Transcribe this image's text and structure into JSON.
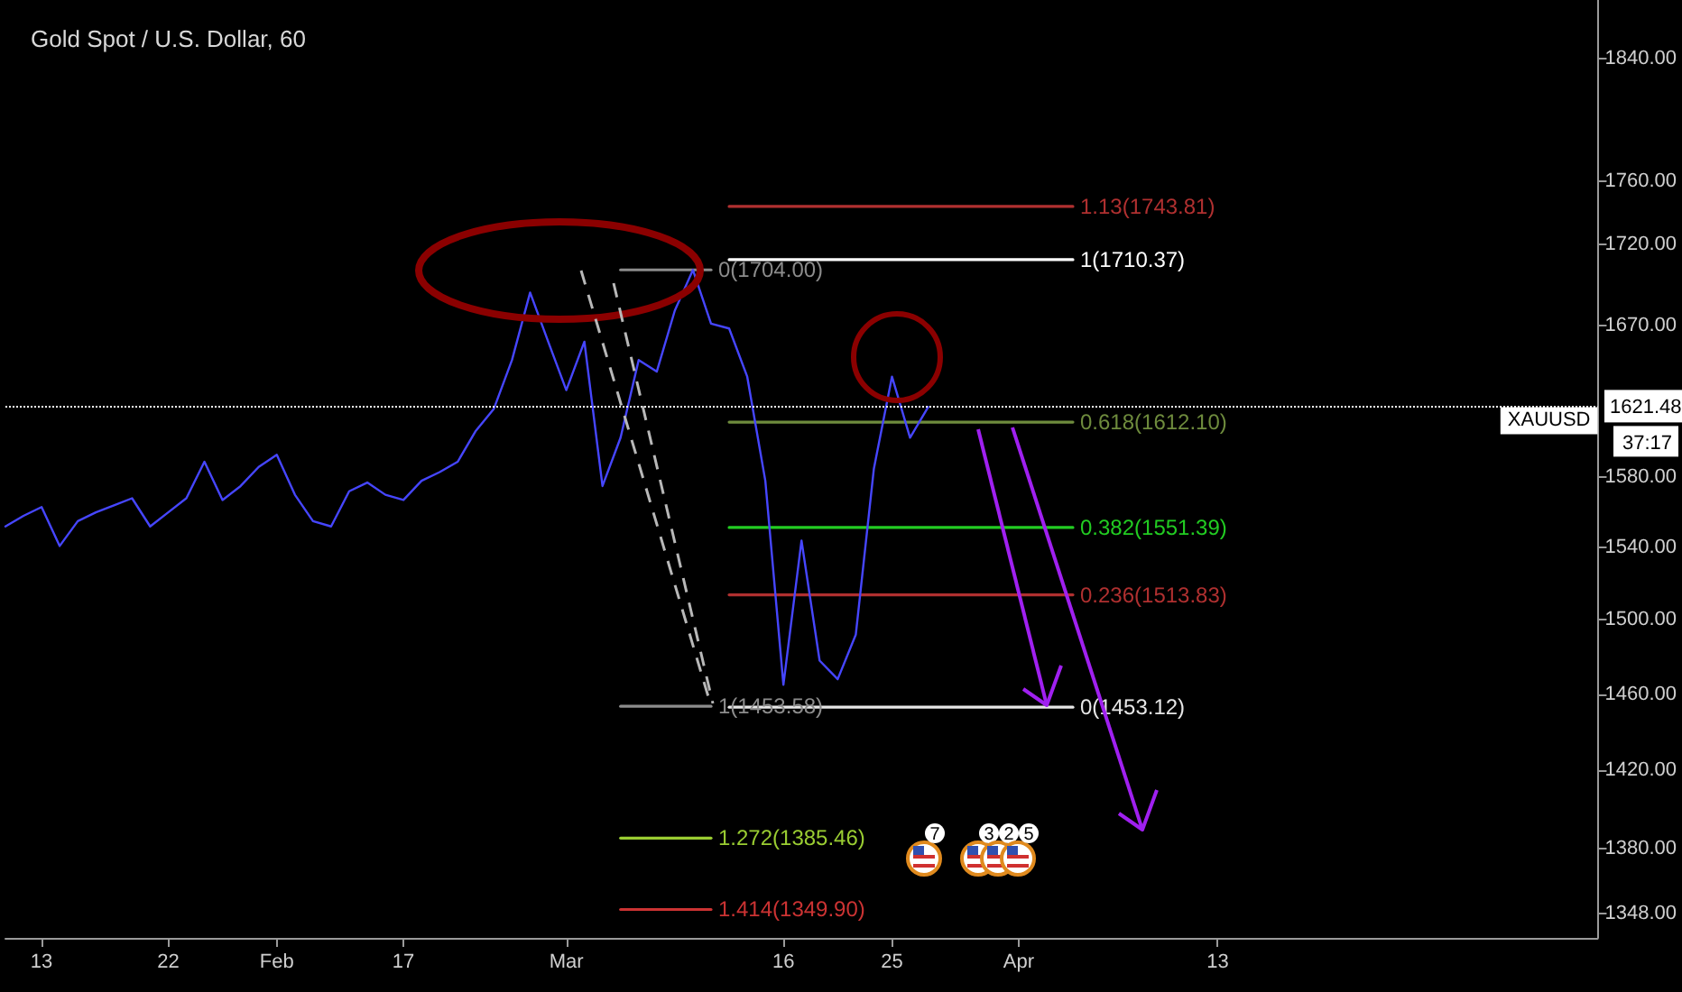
{
  "chart_data": {
    "type": "line",
    "title": "Gold Spot / U.S. Dollar, 60",
    "log": "y",
    "categories": [
      null,
      null,
      "13",
      null,
      null,
      null,
      null,
      null,
      null,
      "22",
      null,
      null,
      null,
      null,
      null,
      "Feb",
      null,
      null,
      null,
      null,
      null,
      null,
      "17",
      null,
      null,
      null,
      null,
      null,
      null,
      null,
      null,
      "Mar",
      null,
      null,
      null,
      null,
      null,
      null,
      null,
      null,
      null,
      null,
      null,
      "16",
      null,
      null,
      null,
      null,
      null,
      "25",
      null,
      null,
      null,
      null,
      null,
      null,
      "Apr",
      null,
      null,
      null,
      null,
      null,
      null,
      null,
      null,
      null,
      null,
      "13",
      null,
      null,
      null,
      null,
      null,
      null,
      null,
      null,
      null,
      null,
      null,
      null,
      null,
      null,
      null,
      null,
      null,
      null,
      null,
      null,
      null
    ],
    "ylim": [
      1336,
      1880
    ],
    "yticks": [
      {
        "value": 1348,
        "label": "1348.00"
      },
      {
        "value": 1380,
        "label": "1380.00"
      },
      {
        "value": 1420,
        "label": "1420.00"
      },
      {
        "value": 1460,
        "label": "1460.00"
      },
      {
        "value": 1500,
        "label": "1500.00"
      },
      {
        "value": 1540,
        "label": "1540.00"
      },
      {
        "value": 1580,
        "label": "1580.00"
      },
      {
        "value": 1670,
        "label": "1670.00"
      },
      {
        "value": 1720,
        "label": "1720.00"
      },
      {
        "value": 1760,
        "label": "1760.00"
      },
      {
        "value": 1840,
        "label": "1840.00"
      }
    ],
    "series": [
      {
        "color": "#4646ff",
        "values": [
          1552,
          1558,
          1563,
          1541,
          1555,
          1560,
          1564,
          1568,
          1552,
          1560,
          1568,
          1589,
          1567,
          1575,
          1586,
          1593,
          1570,
          1555,
          1552,
          1572,
          1577,
          1570,
          1567,
          1578,
          1583,
          1589,
          1607,
          1620,
          1649,
          1690,
          1660,
          1631,
          1660,
          1575,
          1603,
          1649,
          1642,
          1679,
          1704,
          1671,
          1668,
          1639,
          1578,
          1465,
          1544,
          1478,
          1468,
          1492,
          1585,
          1639,
          1603,
          1621,
          null,
          null,
          null,
          null,
          null,
          null,
          null,
          null,
          null,
          null,
          null,
          null,
          null,
          null,
          null,
          null,
          null,
          null,
          null,
          null,
          null,
          null,
          null,
          null,
          null,
          null,
          null,
          null,
          null,
          null,
          null,
          null,
          null,
          null,
          null,
          null,
          null
        ]
      },
      {
        "name": "1.13(1743.81)",
        "color": "#b03030",
        "values": [
          null,
          null,
          null,
          null,
          null,
          null,
          null,
          null,
          null,
          null,
          null,
          null,
          null,
          null,
          null,
          null,
          null,
          null,
          null,
          null,
          null,
          null,
          null,
          null,
          null,
          null,
          null,
          null,
          null,
          null,
          null,
          null,
          null,
          null,
          null,
          null,
          null,
          null,
          null,
          null,
          1743.81,
          1743.81,
          1743.81,
          1743.81,
          1743.81,
          1743.81,
          1743.81,
          1743.81,
          1743.81,
          1743.81,
          1743.81,
          1743.81,
          1743.81,
          1743.81,
          1743.81,
          1743.81,
          1743.81,
          1743.81,
          1743.81,
          1743.81,
          null,
          null,
          null,
          null,
          null,
          null,
          null,
          null,
          null,
          null,
          null,
          null,
          null,
          null,
          null,
          null,
          null,
          null,
          null,
          null,
          null,
          null,
          null,
          null,
          null,
          null,
          null,
          null,
          null
        ]
      },
      {
        "name": "1(1710.37)",
        "color": "#ffffff",
        "values": [
          null,
          null,
          null,
          null,
          null,
          null,
          null,
          null,
          null,
          null,
          null,
          null,
          null,
          null,
          null,
          null,
          null,
          null,
          null,
          null,
          null,
          null,
          null,
          null,
          null,
          null,
          null,
          null,
          null,
          null,
          null,
          null,
          null,
          null,
          null,
          null,
          null,
          null,
          null,
          null,
          1710.37,
          1710.37,
          1710.37,
          1710.37,
          1710.37,
          1710.37,
          1710.37,
          1710.37,
          1710.37,
          1710.37,
          1710.37,
          1710.37,
          1710.37,
          1710.37,
          1710.37,
          1710.37,
          1710.37,
          1710.37,
          1710.37,
          1710.37,
          null,
          null,
          null,
          null,
          null,
          null,
          null,
          null,
          null,
          null,
          null,
          null,
          null,
          null,
          null,
          null,
          null,
          null,
          null,
          null,
          null,
          null,
          null,
          null,
          null,
          null,
          null,
          null,
          null
        ]
      },
      {
        "name": "0(1704.00)",
        "color": "#8c8c8c",
        "values": [
          null,
          null,
          null,
          null,
          null,
          null,
          null,
          null,
          null,
          null,
          null,
          null,
          null,
          null,
          null,
          null,
          null,
          null,
          null,
          null,
          null,
          null,
          null,
          null,
          null,
          null,
          null,
          null,
          null,
          null,
          null,
          null,
          null,
          null,
          1704,
          1704,
          1704,
          1704,
          1704,
          1704,
          null,
          null,
          null,
          null,
          null,
          null,
          null,
          null,
          null,
          null,
          null,
          null,
          null,
          null,
          null,
          null,
          null,
          null,
          null,
          null,
          null,
          null,
          null,
          null,
          null,
          null,
          null,
          null,
          null,
          null,
          null,
          null,
          null,
          null,
          null,
          null,
          null,
          null,
          null,
          null,
          null,
          null,
          null,
          null,
          null,
          null,
          null,
          null,
          null
        ]
      },
      {
        "name": "0.618(1612.10)",
        "color": "#6e8b3d",
        "values": [
          null,
          null,
          null,
          null,
          null,
          null,
          null,
          null,
          null,
          null,
          null,
          null,
          null,
          null,
          null,
          null,
          null,
          null,
          null,
          null,
          null,
          null,
          null,
          null,
          null,
          null,
          null,
          null,
          null,
          null,
          null,
          null,
          null,
          null,
          null,
          null,
          null,
          null,
          null,
          null,
          1612.1,
          1612.1,
          1612.1,
          1612.1,
          1612.1,
          1612.1,
          1612.1,
          1612.1,
          1612.1,
          1612.1,
          1612.1,
          1612.1,
          1612.1,
          1612.1,
          1612.1,
          1612.1,
          1612.1,
          1612.1,
          1612.1,
          1612.1,
          null,
          null,
          null,
          null,
          null,
          null,
          null,
          null,
          null,
          null,
          null,
          null,
          null,
          null,
          null,
          null,
          null,
          null,
          null,
          null,
          null,
          null,
          null,
          null,
          null,
          null,
          null,
          null,
          null
        ]
      },
      {
        "name": "0.382(1551.39)",
        "color": "#22cc22",
        "values": [
          null,
          null,
          null,
          null,
          null,
          null,
          null,
          null,
          null,
          null,
          null,
          null,
          null,
          null,
          null,
          null,
          null,
          null,
          null,
          null,
          null,
          null,
          null,
          null,
          null,
          null,
          null,
          null,
          null,
          null,
          null,
          null,
          null,
          null,
          null,
          null,
          null,
          null,
          null,
          null,
          1551.39,
          1551.39,
          1551.39,
          1551.39,
          1551.39,
          1551.39,
          1551.39,
          1551.39,
          1551.39,
          1551.39,
          1551.39,
          1551.39,
          1551.39,
          1551.39,
          1551.39,
          1551.39,
          1551.39,
          1551.39,
          1551.39,
          1551.39,
          null,
          null,
          null,
          null,
          null,
          null,
          null,
          null,
          null,
          null,
          null,
          null,
          null,
          null,
          null,
          null,
          null,
          null,
          null,
          null,
          null,
          null,
          null,
          null,
          null,
          null,
          null,
          null,
          null
        ]
      },
      {
        "name": "0.236(1513.83)",
        "color": "#b03030",
        "values": [
          null,
          null,
          null,
          null,
          null,
          null,
          null,
          null,
          null,
          null,
          null,
          null,
          null,
          null,
          null,
          null,
          null,
          null,
          null,
          null,
          null,
          null,
          null,
          null,
          null,
          null,
          null,
          null,
          null,
          null,
          null,
          null,
          null,
          null,
          null,
          null,
          null,
          null,
          null,
          null,
          1513.83,
          1513.83,
          1513.83,
          1513.83,
          1513.83,
          1513.83,
          1513.83,
          1513.83,
          1513.83,
          1513.83,
          1513.83,
          1513.83,
          1513.83,
          1513.83,
          1513.83,
          1513.83,
          1513.83,
          1513.83,
          1513.83,
          1513.83,
          null,
          null,
          null,
          null,
          null,
          null,
          null,
          null,
          null,
          null,
          null,
          null,
          null,
          null,
          null,
          null,
          null,
          null,
          null,
          null,
          null,
          null,
          null,
          null,
          null,
          null,
          null,
          null,
          null
        ]
      },
      {
        "name": "0(1453.12)",
        "color": "#e6e6e6",
        "values": [
          null,
          null,
          null,
          null,
          null,
          null,
          null,
          null,
          null,
          null,
          null,
          null,
          null,
          null,
          null,
          null,
          null,
          null,
          null,
          null,
          null,
          null,
          null,
          null,
          null,
          null,
          null,
          null,
          null,
          null,
          null,
          null,
          null,
          null,
          null,
          null,
          null,
          null,
          null,
          null,
          1453.12,
          1453.12,
          1453.12,
          1453.12,
          1453.12,
          1453.12,
          1453.12,
          1453.12,
          1453.12,
          1453.12,
          1453.12,
          1453.12,
          1453.12,
          1453.12,
          1453.12,
          1453.12,
          1453.12,
          1453.12,
          1453.12,
          1453.12,
          null,
          null,
          null,
          null,
          null,
          null,
          null,
          null,
          null,
          null,
          null,
          null,
          null,
          null,
          null,
          null,
          null,
          null,
          null,
          null,
          null,
          null,
          null,
          null,
          null,
          null,
          null,
          null,
          null
        ]
      },
      {
        "name": "1(1453.58)",
        "color": "#8c8c8c",
        "values": [
          null,
          null,
          null,
          null,
          null,
          null,
          null,
          null,
          null,
          null,
          null,
          null,
          null,
          null,
          null,
          null,
          null,
          null,
          null,
          null,
          null,
          null,
          null,
          null,
          null,
          null,
          null,
          null,
          null,
          null,
          null,
          null,
          null,
          null,
          1453.58,
          1453.58,
          1453.58,
          1453.58,
          1453.58,
          1453.58,
          null,
          null,
          null,
          null,
          null,
          null,
          null,
          null,
          null,
          null,
          null,
          null,
          null,
          null,
          null,
          null,
          null,
          null,
          null,
          null,
          null,
          null,
          null,
          null,
          null,
          null,
          null,
          null,
          null,
          null,
          null,
          null,
          null,
          null,
          null,
          null,
          null,
          null,
          null,
          null,
          null,
          null,
          null,
          null,
          null,
          null,
          null,
          null,
          null
        ]
      },
      {
        "name": "1.272(1385.46)",
        "color": "#9acd32",
        "values": [
          null,
          null,
          null,
          null,
          null,
          null,
          null,
          null,
          null,
          null,
          null,
          null,
          null,
          null,
          null,
          null,
          null,
          null,
          null,
          null,
          null,
          null,
          null,
          null,
          null,
          null,
          null,
          null,
          null,
          null,
          null,
          null,
          null,
          null,
          1385.46,
          1385.46,
          1385.46,
          1385.46,
          1385.46,
          1385.46,
          null,
          null,
          null,
          null,
          null,
          null,
          null,
          null,
          null,
          null,
          null,
          null,
          null,
          null,
          null,
          null,
          null,
          null,
          null,
          null,
          null,
          null,
          null,
          null,
          null,
          null,
          null,
          null,
          null,
          null,
          null,
          null,
          null,
          null,
          null,
          null,
          null,
          null,
          null,
          null,
          null,
          null,
          null,
          null,
          null,
          null,
          null,
          null,
          null
        ]
      },
      {
        "name": "1.414(1349.90)",
        "color": "#cc3333",
        "values": [
          null,
          null,
          null,
          null,
          null,
          null,
          null,
          null,
          null,
          null,
          null,
          null,
          null,
          null,
          null,
          null,
          null,
          null,
          null,
          null,
          null,
          null,
          null,
          null,
          null,
          null,
          null,
          null,
          null,
          null,
          null,
          null,
          null,
          null,
          1349.9,
          1349.9,
          1349.9,
          1349.9,
          1349.9,
          1349.9,
          null,
          null,
          null,
          null,
          null,
          null,
          null,
          null,
          null,
          null,
          null,
          null,
          null,
          null,
          null,
          null,
          null,
          null,
          null,
          null,
          null,
          null,
          null,
          null,
          null,
          null,
          null,
          null,
          null,
          null,
          null,
          null,
          null,
          null,
          null,
          null,
          null,
          null,
          null,
          null,
          null,
          null,
          null,
          null,
          null,
          null,
          null,
          null,
          null
        ]
      }
    ],
    "ref_lines": [
      {
        "axis": "y",
        "value": 1621.48,
        "label": "XAUUSD",
        "color": "#ffffff",
        "line_style": "dotted"
      }
    ],
    "annotations": [
      "1621.48",
      "37:17",
      "7",
      "3",
      "2",
      "5"
    ],
    "grid": false,
    "legend": false
  }
}
